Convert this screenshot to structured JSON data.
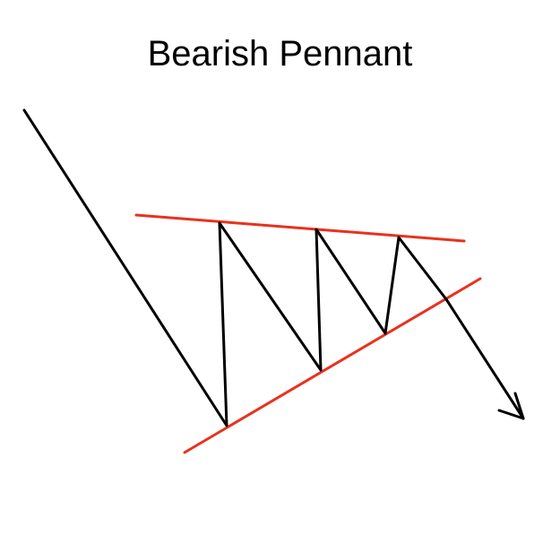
{
  "title": "Bearish Pennant",
  "colors": {
    "price_line": "#000000",
    "trendline": "#e8321e",
    "background": "#ffffff"
  }
}
